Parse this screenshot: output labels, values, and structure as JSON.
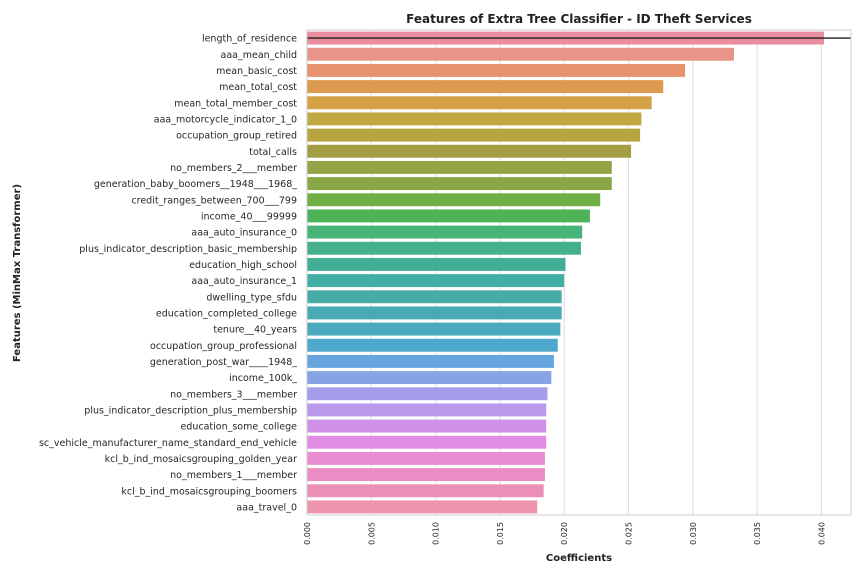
{
  "chart_data": {
    "type": "bar",
    "orientation": "horizontal",
    "title": "Features of Extra Tree Classifier - ID Theft Services",
    "xlabel": "Coefficients",
    "ylabel": "Features (MinMax Transformer)",
    "xlim": [
      0.0,
      0.0423
    ],
    "x_ticks": [
      "0.000",
      "0.005",
      "0.010",
      "0.015",
      "0.020",
      "0.025",
      "0.030",
      "0.035",
      "0.040"
    ],
    "grid": "vertical",
    "categories": [
      "length_of_residence",
      "aaa_mean_child",
      "mean_basic_cost",
      "mean_total_cost",
      "mean_total_member_cost",
      "aaa_motorcycle_indicator_1_0",
      "occupation_group_retired",
      "total_calls",
      "no_members_2___member",
      "generation_baby_boomers__1948___1968_",
      "credit_ranges_between_700___799",
      "income_40___99999",
      "aaa_auto_insurance_0",
      "plus_indicator_description_basic_membership",
      "education_high_school",
      "aaa_auto_insurance_1",
      "dwelling_type_sfdu",
      "education_completed_college",
      "tenure__40_years",
      "occupation_group_professional",
      "generation_post_war____1948_",
      "income_100k_",
      "no_members_3___member",
      "plus_indicator_description_plus_membership",
      "education_some_college",
      "sc_vehicle_manufacturer_name_standard_end_vehicle",
      "kcl_b_ind_mosaicsgrouping_golden_year",
      "no_members_1___member",
      "kcl_b_ind_mosaicsgrouping_boomers",
      "aaa_travel_0"
    ],
    "values": [
      0.0402,
      0.0332,
      0.0294,
      0.0277,
      0.0268,
      0.026,
      0.0259,
      0.0252,
      0.0237,
      0.0237,
      0.0228,
      0.022,
      0.0214,
      0.0213,
      0.0201,
      0.02,
      0.0198,
      0.0198,
      0.0197,
      0.0195,
      0.0192,
      0.019,
      0.0187,
      0.0186,
      0.0186,
      0.0186,
      0.0185,
      0.0185,
      0.0184,
      0.0179
    ],
    "colors": [
      "#eb8da0",
      "#e89489",
      "#e8936d",
      "#dd9a4f",
      "#d4a245",
      "#c2a843",
      "#b6a541",
      "#a39e43",
      "#92a446",
      "#89a845",
      "#6faf45",
      "#4eb357",
      "#46b478",
      "#44b18b",
      "#42ae96",
      "#43aea3",
      "#47aca8",
      "#48abb4",
      "#4aa9bd",
      "#4ea8ce",
      "#66a5e0",
      "#86a3e6",
      "#a49eeb",
      "#ba98eb",
      "#cf92e8",
      "#e38ce3",
      "#e98cd2",
      "#ec8cc4",
      "#ec8fb6",
      "#ed95ad"
    ],
    "reference_line": 0.0402,
    "reference_line_color": "#222222"
  }
}
